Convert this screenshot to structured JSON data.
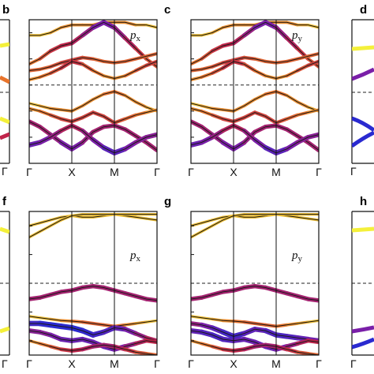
{
  "figure": {
    "background": "#ffffff",
    "colors": {
      "frame": "#111111",
      "fermi_line": "#222222",
      "band_line": "#1a1a1a",
      "weight_low": "#f4f03a",
      "weight_mid": "#e8742c",
      "weight_high": "#c0244a",
      "weight_strong": "#7a1fa8",
      "weight_max": "#2a2ad0"
    }
  },
  "chart_data": [
    {
      "type": "line",
      "panel": "b",
      "orbital_label": "p",
      "orbital_subscript": "x",
      "kpath_labels": [
        "Γ",
        "X",
        "M",
        "Γ"
      ],
      "kpath_x": [
        0,
        1,
        2,
        3
      ],
      "fermi_level": 0,
      "ylim": [
        -3,
        2.5
      ],
      "x": [
        0,
        0.25,
        0.5,
        0.75,
        1,
        1.25,
        1.5,
        1.75,
        2,
        2.25,
        2.5,
        2.75,
        3
      ],
      "bands": [
        {
          "values": [
            1.9,
            1.9,
            2.0,
            2.2,
            2.3,
            2.3,
            2.3,
            2.4,
            2.4,
            2.4,
            2.3,
            2.3,
            2.2
          ],
          "weight": [
            0.1,
            0.1,
            0.1,
            0.2,
            0.2,
            0.2,
            0.2,
            0.2,
            0.2,
            0.2,
            0.2,
            0.1,
            0.1
          ]
        },
        {
          "values": [
            0.8,
            1.0,
            1.3,
            1.5,
            1.6,
            1.9,
            2.2,
            2.4,
            2.2,
            1.8,
            1.4,
            1.0,
            0.7
          ],
          "weight": [
            0.2,
            0.3,
            0.4,
            0.5,
            0.5,
            0.6,
            0.7,
            0.8,
            0.7,
            0.6,
            0.5,
            0.4,
            0.3
          ]
        },
        {
          "values": [
            0.55,
            0.6,
            0.7,
            0.85,
            0.95,
            1.05,
            1.0,
            0.9,
            0.85,
            0.9,
            1.0,
            1.1,
            1.2
          ],
          "weight": [
            0.3,
            0.3,
            0.3,
            0.4,
            0.4,
            0.4,
            0.3,
            0.3,
            0.3,
            0.3,
            0.3,
            0.3,
            0.3
          ]
        },
        {
          "values": [
            0.2,
            0.3,
            0.45,
            0.65,
            0.9,
            0.8,
            0.55,
            0.35,
            0.25,
            0.35,
            0.55,
            0.75,
            0.9
          ],
          "weight": [
            0.2,
            0.2,
            0.3,
            0.4,
            0.5,
            0.4,
            0.3,
            0.2,
            0.2,
            0.2,
            0.3,
            0.4,
            0.4
          ]
        },
        {
          "values": [
            -0.7,
            -0.8,
            -0.9,
            -0.95,
            -1.0,
            -0.8,
            -0.55,
            -0.35,
            -0.25,
            -0.4,
            -0.65,
            -0.85,
            -1.0
          ],
          "weight": [
            0.1,
            0.1,
            0.2,
            0.2,
            0.2,
            0.2,
            0.2,
            0.2,
            0.3,
            0.2,
            0.2,
            0.2,
            0.1
          ]
        },
        {
          "values": [
            -0.9,
            -1.0,
            -1.15,
            -1.3,
            -1.4,
            -1.25,
            -1.05,
            -1.2,
            -1.45,
            -1.3,
            -1.15,
            -1.05,
            -0.95
          ],
          "weight": [
            0.2,
            0.2,
            0.3,
            0.4,
            0.4,
            0.4,
            0.4,
            0.4,
            0.4,
            0.3,
            0.3,
            0.2,
            0.2
          ]
        },
        {
          "values": [
            -1.4,
            -1.6,
            -1.9,
            -2.2,
            -2.45,
            -2.2,
            -1.8,
            -1.6,
            -1.55,
            -1.7,
            -1.95,
            -2.2,
            -2.5
          ],
          "weight": [
            0.6,
            0.6,
            0.6,
            0.7,
            0.8,
            0.7,
            0.6,
            0.6,
            0.6,
            0.6,
            0.6,
            0.6,
            0.6
          ]
        },
        {
          "values": [
            -2.3,
            -2.2,
            -2.0,
            -1.75,
            -1.55,
            -1.75,
            -2.1,
            -2.4,
            -2.6,
            -2.45,
            -2.2,
            -2.0,
            -1.9
          ],
          "weight": [
            0.8,
            0.8,
            0.7,
            0.6,
            0.5,
            0.6,
            0.7,
            0.8,
            0.9,
            0.8,
            0.7,
            0.7,
            0.7
          ]
        }
      ]
    },
    {
      "type": "line",
      "panel": "c",
      "orbital_label": "p",
      "orbital_subscript": "y",
      "kpath_labels": [
        "Γ",
        "X",
        "M",
        "Γ"
      ],
      "kpath_x": [
        0,
        1,
        2,
        3
      ],
      "fermi_level": 0,
      "ylim": [
        -3,
        2.5
      ],
      "x": [
        0,
        0.25,
        0.5,
        0.75,
        1,
        1.25,
        1.5,
        1.75,
        2,
        2.25,
        2.5,
        2.75,
        3
      ],
      "bands": [
        {
          "values": [
            1.9,
            1.9,
            2.0,
            2.2,
            2.3,
            2.3,
            2.3,
            2.4,
            2.4,
            2.4,
            2.3,
            2.3,
            2.2
          ],
          "weight": [
            0.1,
            0.1,
            0.1,
            0.2,
            0.2,
            0.2,
            0.2,
            0.2,
            0.2,
            0.2,
            0.2,
            0.1,
            0.1
          ]
        },
        {
          "values": [
            0.8,
            1.0,
            1.3,
            1.5,
            1.6,
            1.9,
            2.2,
            2.4,
            2.2,
            1.8,
            1.4,
            1.0,
            0.7
          ],
          "weight": [
            0.2,
            0.3,
            0.4,
            0.5,
            0.5,
            0.6,
            0.7,
            0.8,
            0.7,
            0.6,
            0.5,
            0.4,
            0.3
          ]
        },
        {
          "values": [
            0.55,
            0.6,
            0.7,
            0.85,
            0.95,
            1.05,
            1.0,
            0.9,
            0.85,
            0.9,
            1.0,
            1.1,
            1.2
          ],
          "weight": [
            0.3,
            0.3,
            0.3,
            0.4,
            0.4,
            0.4,
            0.3,
            0.3,
            0.3,
            0.3,
            0.3,
            0.3,
            0.3
          ]
        },
        {
          "values": [
            0.2,
            0.3,
            0.45,
            0.65,
            0.9,
            0.8,
            0.55,
            0.35,
            0.25,
            0.35,
            0.55,
            0.75,
            0.9
          ],
          "weight": [
            0.2,
            0.2,
            0.3,
            0.4,
            0.5,
            0.4,
            0.3,
            0.2,
            0.2,
            0.2,
            0.3,
            0.4,
            0.4
          ]
        },
        {
          "values": [
            -0.7,
            -0.8,
            -0.9,
            -0.95,
            -1.0,
            -0.8,
            -0.55,
            -0.35,
            -0.25,
            -0.4,
            -0.65,
            -0.85,
            -1.0
          ],
          "weight": [
            0.1,
            0.1,
            0.2,
            0.2,
            0.2,
            0.2,
            0.2,
            0.2,
            0.3,
            0.2,
            0.2,
            0.2,
            0.1
          ]
        },
        {
          "values": [
            -0.9,
            -1.0,
            -1.15,
            -1.3,
            -1.4,
            -1.25,
            -1.05,
            -1.2,
            -1.45,
            -1.3,
            -1.15,
            -1.05,
            -0.95
          ],
          "weight": [
            0.2,
            0.2,
            0.3,
            0.4,
            0.4,
            0.4,
            0.4,
            0.4,
            0.4,
            0.3,
            0.3,
            0.2,
            0.2
          ]
        },
        {
          "values": [
            -1.4,
            -1.6,
            -1.9,
            -2.2,
            -2.45,
            -2.2,
            -1.8,
            -1.6,
            -1.55,
            -1.7,
            -1.95,
            -2.2,
            -2.5
          ],
          "weight": [
            0.6,
            0.6,
            0.6,
            0.7,
            0.8,
            0.7,
            0.6,
            0.6,
            0.6,
            0.6,
            0.6,
            0.6,
            0.6
          ]
        },
        {
          "values": [
            -2.3,
            -2.2,
            -2.0,
            -1.75,
            -1.55,
            -1.75,
            -2.1,
            -2.4,
            -2.6,
            -2.45,
            -2.2,
            -2.0,
            -1.9
          ],
          "weight": [
            0.8,
            0.8,
            0.7,
            0.6,
            0.5,
            0.6,
            0.7,
            0.8,
            0.9,
            0.8,
            0.7,
            0.7,
            0.7
          ]
        }
      ]
    },
    {
      "type": "line",
      "panel": "f",
      "orbital_label": "p",
      "orbital_subscript": "x",
      "kpath_labels": [
        "Γ",
        "X",
        "M",
        "Γ"
      ],
      "kpath_x": [
        0,
        1,
        2,
        3
      ],
      "fermi_level": 0,
      "ylim": [
        -2.5,
        2.5
      ],
      "x": [
        0,
        0.25,
        0.5,
        0.75,
        1,
        1.25,
        1.5,
        1.75,
        2,
        2.25,
        2.5,
        2.75,
        3
      ],
      "bands": [
        {
          "values": [
            2.0,
            2.1,
            2.2,
            2.3,
            2.35,
            2.3,
            2.3,
            2.35,
            2.4,
            2.35,
            2.3,
            2.25,
            2.2
          ],
          "weight": [
            0.1,
            0.1,
            0.1,
            0.1,
            0.1,
            0.1,
            0.1,
            0.1,
            0.1,
            0.1,
            0.1,
            0.1,
            0.1
          ]
        },
        {
          "values": [
            1.6,
            1.8,
            2.0,
            2.2,
            2.35,
            2.4,
            2.4,
            2.4,
            2.4,
            2.4,
            2.4,
            2.4,
            2.4
          ],
          "weight": [
            0.1,
            0.1,
            0.1,
            0.1,
            0.1,
            0.1,
            0.1,
            0.1,
            0.1,
            0.1,
            0.1,
            0.1,
            0.1
          ]
        },
        {
          "values": [
            -0.55,
            -0.5,
            -0.4,
            -0.3,
            -0.25,
            -0.15,
            -0.1,
            -0.15,
            -0.25,
            -0.35,
            -0.45,
            -0.55,
            -0.6
          ],
          "weight": [
            0.6,
            0.6,
            0.6,
            0.6,
            0.6,
            0.6,
            0.6,
            0.6,
            0.6,
            0.6,
            0.6,
            0.6,
            0.6
          ]
        },
        {
          "values": [
            -1.15,
            -1.2,
            -1.25,
            -1.3,
            -1.32,
            -1.35,
            -1.4,
            -1.45,
            -1.5,
            -1.45,
            -1.4,
            -1.35,
            -1.3
          ],
          "weight": [
            0.1,
            0.1,
            0.1,
            0.2,
            0.2,
            0.3,
            0.3,
            0.3,
            0.3,
            0.2,
            0.2,
            0.1,
            0.1
          ]
        },
        {
          "values": [
            -1.4,
            -1.4,
            -1.45,
            -1.5,
            -1.55,
            -1.65,
            -1.8,
            -1.7,
            -1.55,
            -1.6,
            -1.75,
            -1.9,
            -2.0
          ],
          "weight": [
            0.9,
            0.95,
            1.0,
            1.0,
            1.0,
            1.0,
            0.95,
            0.9,
            0.85,
            0.8,
            0.7,
            0.6,
            0.5
          ]
        },
        {
          "values": [
            -1.65,
            -1.7,
            -1.8,
            -1.95,
            -2.0,
            -1.95,
            -2.05,
            -2.2,
            -2.3,
            -2.2,
            -2.1,
            -2.0,
            -2.05
          ],
          "weight": [
            0.7,
            0.7,
            0.7,
            0.8,
            0.8,
            0.8,
            0.8,
            0.8,
            0.8,
            0.7,
            0.6,
            0.5,
            0.5
          ]
        },
        {
          "values": [
            -2.0,
            -2.1,
            -2.2,
            -2.3,
            -2.35,
            -2.3,
            -2.2,
            -2.15,
            -2.2,
            -2.3,
            -2.4,
            -2.45,
            -2.5
          ],
          "weight": [
            0.2,
            0.2,
            0.3,
            0.4,
            0.5,
            0.5,
            0.6,
            0.6,
            0.6,
            0.5,
            0.4,
            0.3,
            0.3
          ]
        }
      ]
    },
    {
      "type": "line",
      "panel": "g",
      "orbital_label": "p",
      "orbital_subscript": "y",
      "kpath_labels": [
        "Γ",
        "X",
        "M",
        "Γ"
      ],
      "kpath_x": [
        0,
        1,
        2,
        3
      ],
      "fermi_level": 0,
      "ylim": [
        -2.5,
        2.5
      ],
      "x": [
        0,
        0.25,
        0.5,
        0.75,
        1,
        1.25,
        1.5,
        1.75,
        2,
        2.25,
        2.5,
        2.75,
        3
      ],
      "bands": [
        {
          "values": [
            2.0,
            2.1,
            2.2,
            2.3,
            2.35,
            2.3,
            2.3,
            2.35,
            2.4,
            2.35,
            2.3,
            2.25,
            2.2
          ],
          "weight": [
            0.1,
            0.1,
            0.1,
            0.1,
            0.1,
            0.1,
            0.1,
            0.1,
            0.1,
            0.1,
            0.1,
            0.1,
            0.1
          ]
        },
        {
          "values": [
            1.6,
            1.8,
            2.0,
            2.2,
            2.35,
            2.4,
            2.4,
            2.4,
            2.4,
            2.4,
            2.4,
            2.4,
            2.4
          ],
          "weight": [
            0.1,
            0.1,
            0.1,
            0.1,
            0.1,
            0.1,
            0.1,
            0.1,
            0.1,
            0.1,
            0.1,
            0.1,
            0.1
          ]
        },
        {
          "values": [
            -0.55,
            -0.5,
            -0.4,
            -0.3,
            -0.25,
            -0.15,
            -0.1,
            -0.15,
            -0.25,
            -0.35,
            -0.45,
            -0.55,
            -0.6
          ],
          "weight": [
            0.6,
            0.6,
            0.6,
            0.6,
            0.6,
            0.6,
            0.6,
            0.6,
            0.6,
            0.6,
            0.6,
            0.6,
            0.6
          ]
        },
        {
          "values": [
            -1.15,
            -1.2,
            -1.25,
            -1.3,
            -1.32,
            -1.35,
            -1.4,
            -1.45,
            -1.5,
            -1.45,
            -1.4,
            -1.35,
            -1.3
          ],
          "weight": [
            0.1,
            0.1,
            0.1,
            0.2,
            0.2,
            0.3,
            0.3,
            0.3,
            0.3,
            0.2,
            0.2,
            0.1,
            0.1
          ]
        },
        {
          "values": [
            -1.4,
            -1.45,
            -1.55,
            -1.7,
            -1.85,
            -1.75,
            -1.6,
            -1.65,
            -1.8,
            -1.85,
            -1.9,
            -1.95,
            -2.0
          ],
          "weight": [
            0.6,
            0.7,
            0.8,
            0.9,
            0.95,
            0.9,
            0.8,
            0.85,
            0.9,
            0.9,
            0.85,
            0.8,
            0.75
          ]
        },
        {
          "values": [
            -1.65,
            -1.7,
            -1.8,
            -1.95,
            -2.0,
            -1.95,
            -2.05,
            -2.2,
            -2.3,
            -2.2,
            -2.1,
            -2.0,
            -2.05
          ],
          "weight": [
            0.8,
            0.85,
            0.9,
            0.9,
            0.85,
            0.8,
            0.8,
            0.8,
            0.8,
            0.7,
            0.6,
            0.5,
            0.5
          ]
        },
        {
          "values": [
            -2.0,
            -2.1,
            -2.2,
            -2.3,
            -2.35,
            -2.3,
            -2.2,
            -2.15,
            -2.2,
            -2.3,
            -2.4,
            -2.45,
            -2.5
          ],
          "weight": [
            0.2,
            0.2,
            0.3,
            0.4,
            0.5,
            0.5,
            0.6,
            0.6,
            0.6,
            0.5,
            0.4,
            0.3,
            0.3
          ]
        }
      ]
    }
  ],
  "partial_panels": [
    {
      "letter": "d",
      "band_color": "#3a2ad0"
    },
    {
      "letter": "h",
      "band_color": "#3a2ad0"
    }
  ],
  "left_partial_tick": "Γ"
}
